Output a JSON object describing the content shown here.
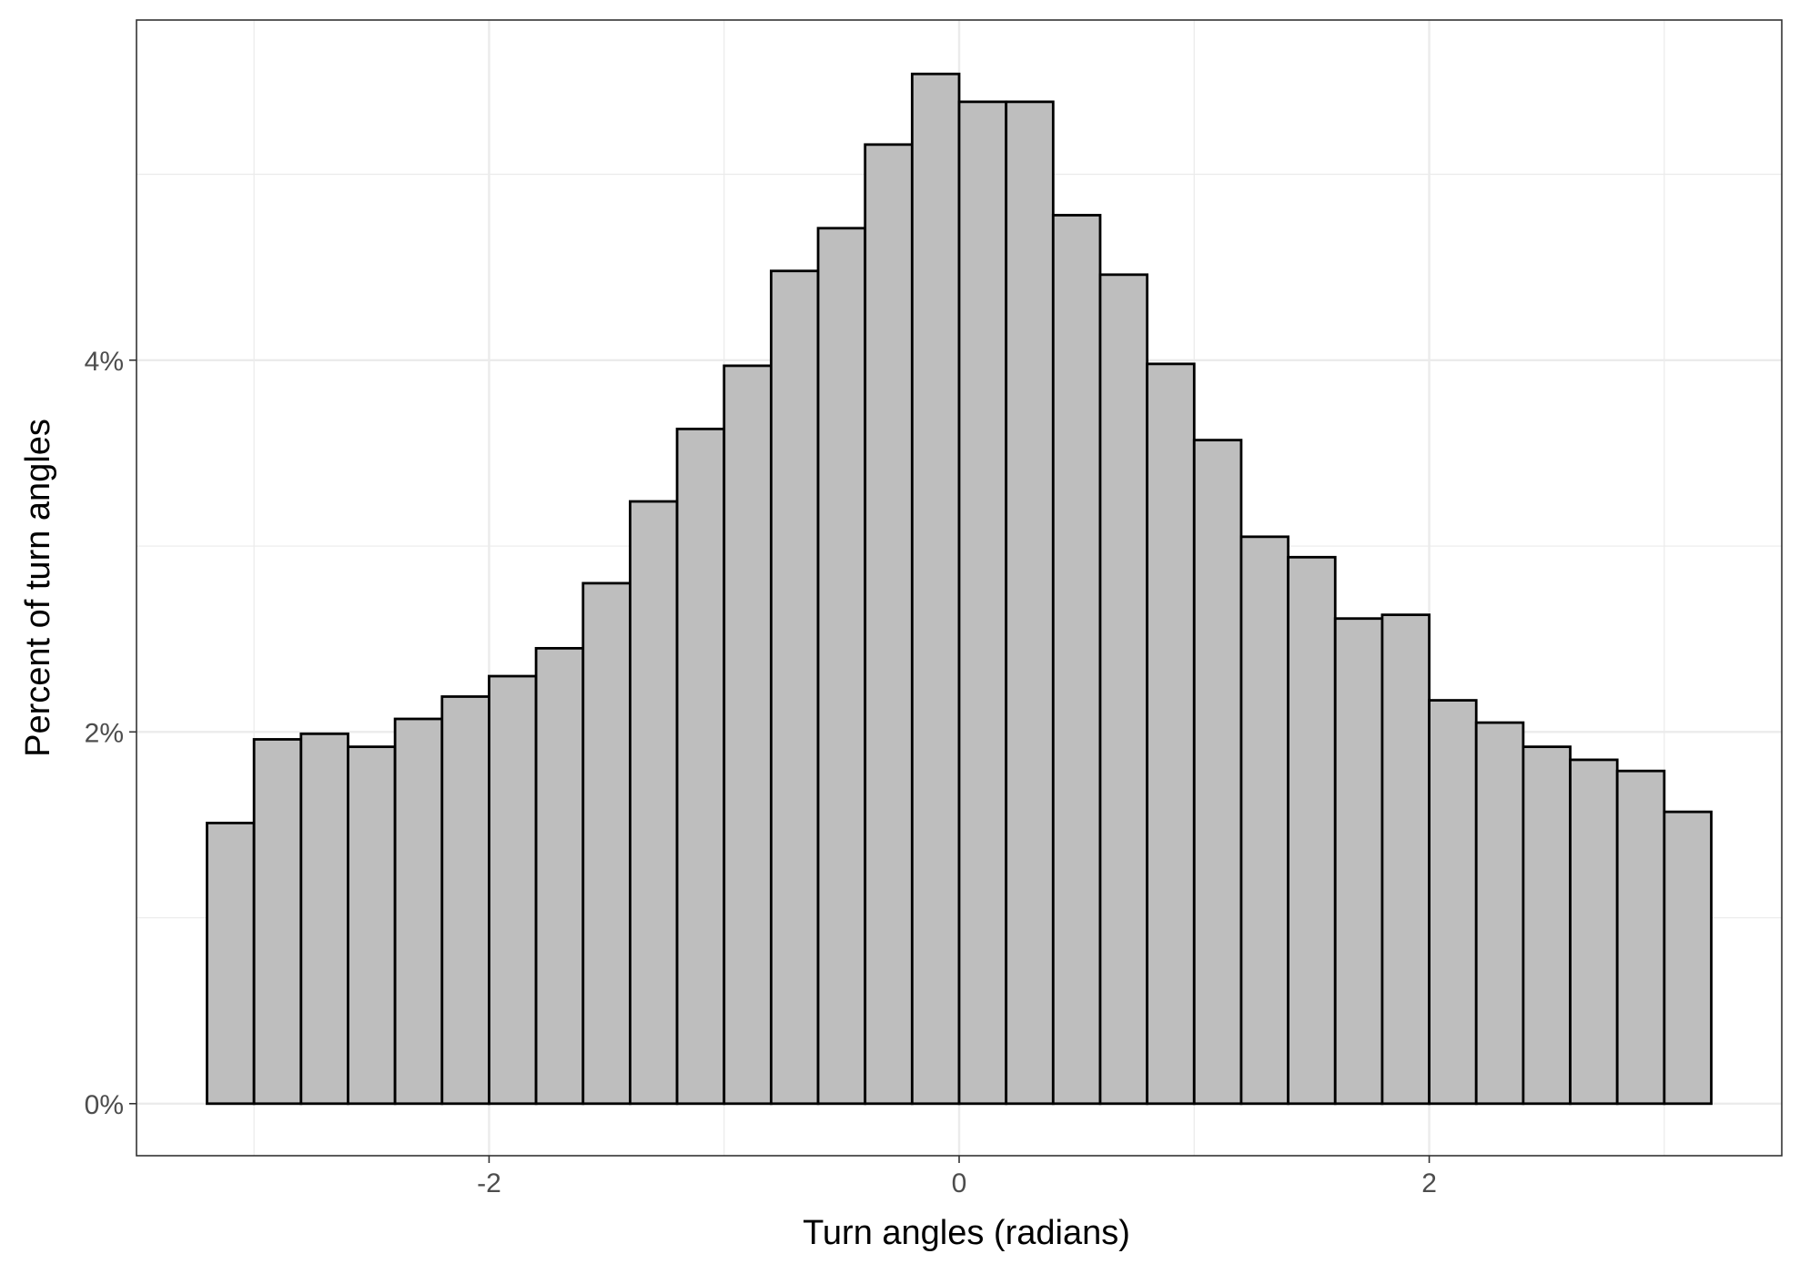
{
  "chart_data": {
    "type": "bar",
    "subtype": "histogram",
    "title": "",
    "xlabel": "Turn angles (radians)",
    "ylabel": "Percent of turn angles",
    "bin_width": 0.2,
    "x_start": -3.2,
    "xlim": [
      -3.5,
      3.5
    ],
    "ylim": [
      -0.28,
      5.83
    ],
    "x_major_ticks": [
      -2,
      0,
      2
    ],
    "x_tick_labels": [
      "-2",
      "0",
      "2"
    ],
    "x_minor_ticks": [
      -3,
      -1,
      1,
      3
    ],
    "y_major_ticks": [
      0,
      2,
      4
    ],
    "y_tick_labels": [
      "0%",
      "2%",
      "4%"
    ],
    "y_minor_ticks": [
      1,
      3,
      5
    ],
    "grid": true,
    "bar_fill": "#bebebe",
    "bar_outline": "#000000",
    "values": [
      1.51,
      1.96,
      1.99,
      1.92,
      2.07,
      2.19,
      2.3,
      2.45,
      2.8,
      3.24,
      3.63,
      3.97,
      4.48,
      4.71,
      5.16,
      5.54,
      5.39,
      5.39,
      4.78,
      4.46,
      3.98,
      3.57,
      3.05,
      2.94,
      2.61,
      2.63,
      2.17,
      2.05,
      1.92,
      1.85,
      1.79,
      1.57
    ]
  }
}
